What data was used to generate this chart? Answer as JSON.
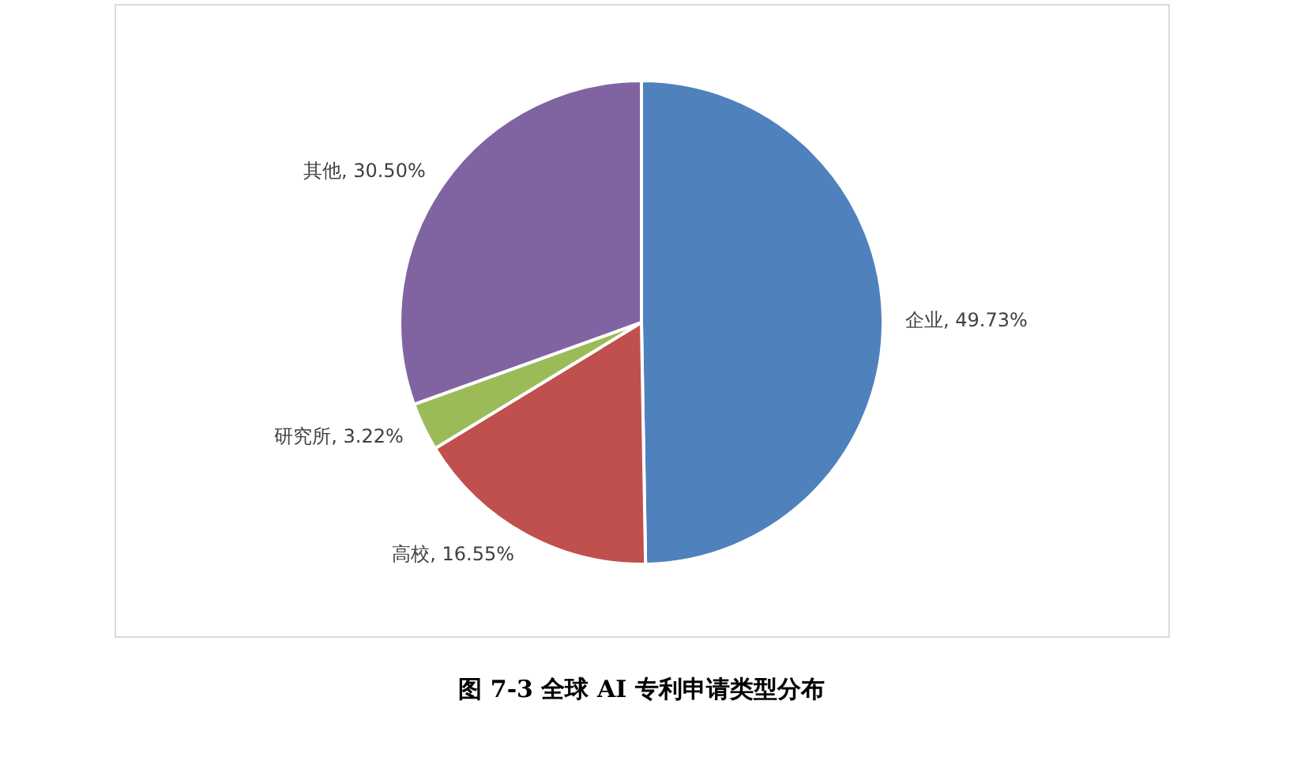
{
  "chart_data": {
    "type": "pie",
    "title": "图 7-3 全球 AI 专利申请类型分布",
    "categories": [
      "企业",
      "高校",
      "研究所",
      "其他"
    ],
    "values": [
      49.73,
      16.55,
      3.22,
      30.5
    ],
    "colors": [
      "#4f81bd",
      "#c0504d",
      "#9bbb59",
      "#8064a2"
    ],
    "value_labels": [
      ", 49.73%",
      ", 16.55%",
      ", 3.22%",
      ", 30.50%"
    ]
  }
}
